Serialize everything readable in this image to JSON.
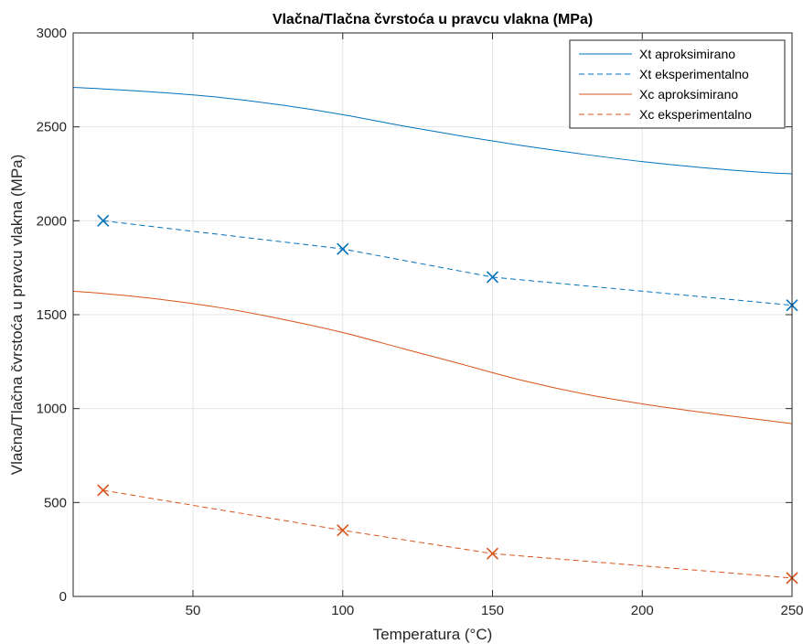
{
  "chart_data": {
    "type": "line",
    "title": "Vlačna/Tlačna čvrstoća u pravcu vlakna (MPa)",
    "xlabel": "Temperatura (°C)",
    "ylabel": "Vlačna/Tlačna čvrstoća u pravcu vlakna (MPa)",
    "xlim": [
      10,
      250
    ],
    "ylim": [
      0,
      3000
    ],
    "xticks": [
      50,
      100,
      150,
      200,
      250
    ],
    "yticks": [
      0,
      500,
      1000,
      1500,
      2000,
      2500,
      3000
    ],
    "grid": true,
    "legend_position": "top-right",
    "series": [
      {
        "name": "Xt aproksimirano",
        "style": "solid",
        "marker": "none",
        "color": "#0072BD",
        "x": [
          10,
          20,
          40,
          60,
          80,
          100,
          120,
          140,
          160,
          180,
          200,
          220,
          240,
          250
        ],
        "y": [
          2710,
          2702,
          2682,
          2655,
          2615,
          2565,
          2505,
          2450,
          2400,
          2355,
          2315,
          2283,
          2258,
          2250
        ]
      },
      {
        "name": "Xt eksperimentalno",
        "style": "dashed",
        "marker": "x",
        "color": "#0072BD",
        "x": [
          20,
          100,
          150,
          250
        ],
        "y": [
          2000,
          1850,
          1700,
          1550
        ]
      },
      {
        "name": "Xc aproksimirano",
        "style": "solid",
        "marker": "none",
        "color": "#D95319",
        "x": [
          10,
          20,
          40,
          60,
          80,
          100,
          120,
          140,
          160,
          180,
          200,
          220,
          240,
          250
        ],
        "y": [
          1625,
          1613,
          1580,
          1535,
          1475,
          1405,
          1320,
          1235,
          1150,
          1080,
          1025,
          980,
          940,
          920
        ]
      },
      {
        "name": "Xc eksperimentalno",
        "style": "dashed",
        "marker": "x",
        "color": "#D95319",
        "x": [
          20,
          100,
          150,
          250
        ],
        "y": [
          565,
          352,
          228,
          98
        ]
      }
    ]
  }
}
